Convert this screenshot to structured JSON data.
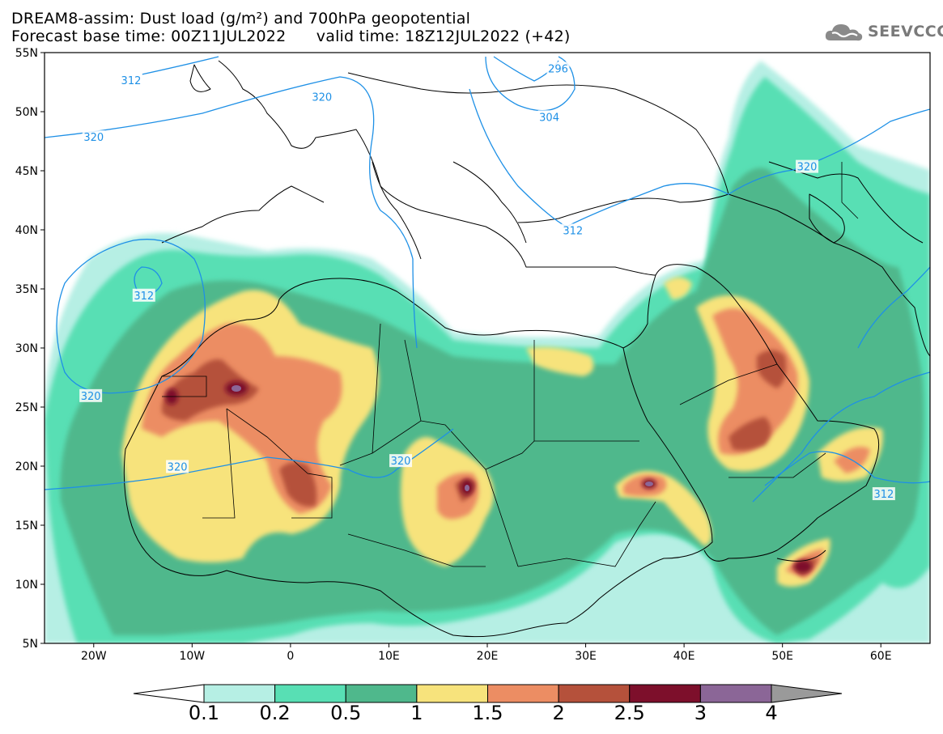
{
  "header": {
    "title_line1": "DREAM8-assim: Dust load (g/m²) and 700hPa geopotential",
    "title_line2": "Forecast base time: 00Z11JUL2022      valid time: 18Z12JUL2022 (+42)",
    "logo_text": "SEEVCCC"
  },
  "map": {
    "lon_range": [
      -25,
      65
    ],
    "lat_range": [
      5,
      55
    ],
    "lat_ticks": [
      {
        "value": 55,
        "label": "55N"
      },
      {
        "value": 50,
        "label": "50N"
      },
      {
        "value": 45,
        "label": "45N"
      },
      {
        "value": 40,
        "label": "40N"
      },
      {
        "value": 35,
        "label": "35N"
      },
      {
        "value": 30,
        "label": "30N"
      },
      {
        "value": 25,
        "label": "25N"
      },
      {
        "value": 20,
        "label": "20N"
      },
      {
        "value": 15,
        "label": "15N"
      },
      {
        "value": 10,
        "label": "10N"
      },
      {
        "value": 5,
        "label": "5N"
      }
    ],
    "lon_ticks": [
      {
        "value": -20,
        "label": "20W"
      },
      {
        "value": -10,
        "label": "10W"
      },
      {
        "value": 0,
        "label": "0"
      },
      {
        "value": 10,
        "label": "10E"
      },
      {
        "value": 20,
        "label": "20E"
      },
      {
        "value": 30,
        "label": "30E"
      },
      {
        "value": 40,
        "label": "40E"
      },
      {
        "value": 50,
        "label": "50E"
      },
      {
        "value": 60,
        "label": "60E"
      }
    ],
    "geopotential_labels": [
      {
        "text": "312",
        "lon": -16.2,
        "lat": 52.6
      },
      {
        "text": "320",
        "lon": 3.2,
        "lat": 51.2
      },
      {
        "text": "296",
        "lon": 27.2,
        "lat": 53.6
      },
      {
        "text": "304",
        "lon": 26.3,
        "lat": 49.5
      },
      {
        "text": "320",
        "lon": -20,
        "lat": 47.8
      },
      {
        "text": "320",
        "lon": 52.5,
        "lat": 45.3
      },
      {
        "text": "312",
        "lon": 28.7,
        "lat": 39.9
      },
      {
        "text": "312",
        "lon": -14.9,
        "lat": 34.4
      },
      {
        "text": "320",
        "lon": -20.3,
        "lat": 25.9
      },
      {
        "text": "320",
        "lon": -11.5,
        "lat": 19.9
      },
      {
        "text": "320",
        "lon": 11.2,
        "lat": 20.4
      },
      {
        "text": "312",
        "lon": 60.3,
        "lat": 17.6
      }
    ]
  },
  "colorbar": {
    "colors": [
      "#ffffff",
      "#b6efe4",
      "#58dfb4",
      "#4fb88c",
      "#f7e37c",
      "#ec8d63",
      "#b5513b",
      "#7d0f2b",
      "#8b6697",
      "#9a9a9a"
    ],
    "labels": [
      "0.1",
      "0.2",
      "0.5",
      "1",
      "1.5",
      "2",
      "2.5",
      "3",
      "4"
    ]
  }
}
